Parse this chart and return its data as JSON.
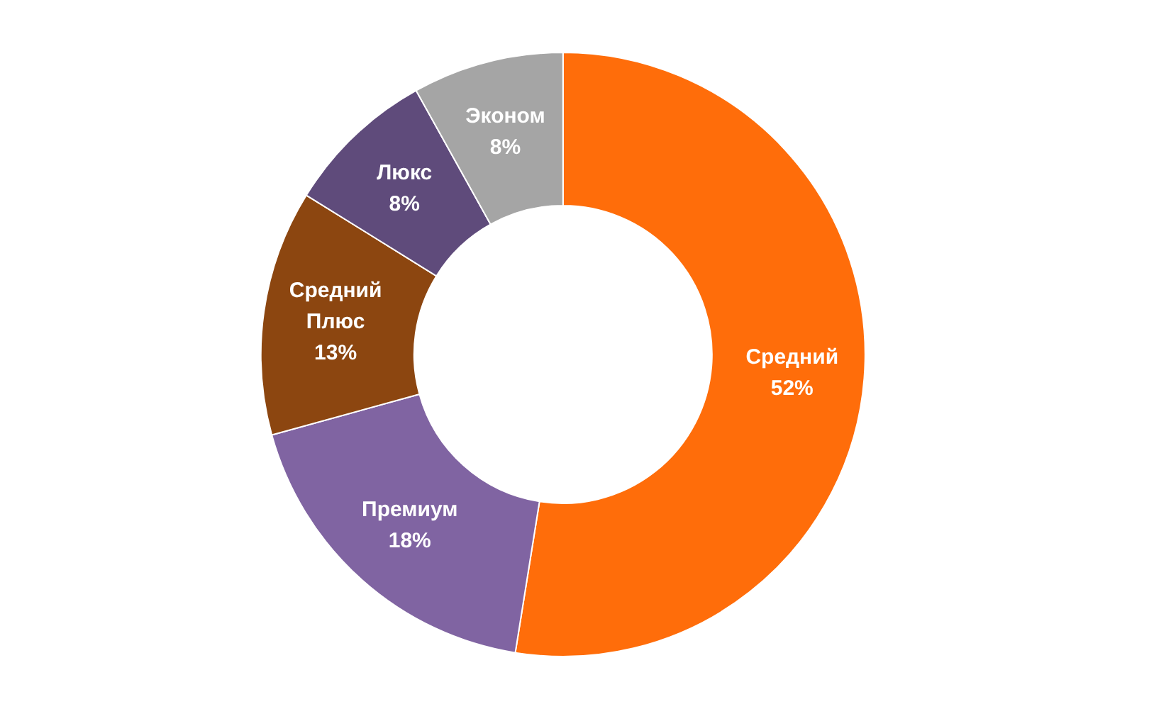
{
  "chart_data": {
    "type": "donut",
    "categories": [
      "Средний",
      "Премиум",
      "Средний Плюс",
      "Люкс",
      "Эконом"
    ],
    "values": [
      52,
      18,
      13,
      8,
      8
    ],
    "colors": [
      "#ff6d0a",
      "#8064a2",
      "#8c4610",
      "#5f4b7b",
      "#a5a5a5"
    ],
    "value_labels": [
      "52%",
      "18%",
      "13%",
      "8%",
      "8%"
    ],
    "legend": false
  }
}
